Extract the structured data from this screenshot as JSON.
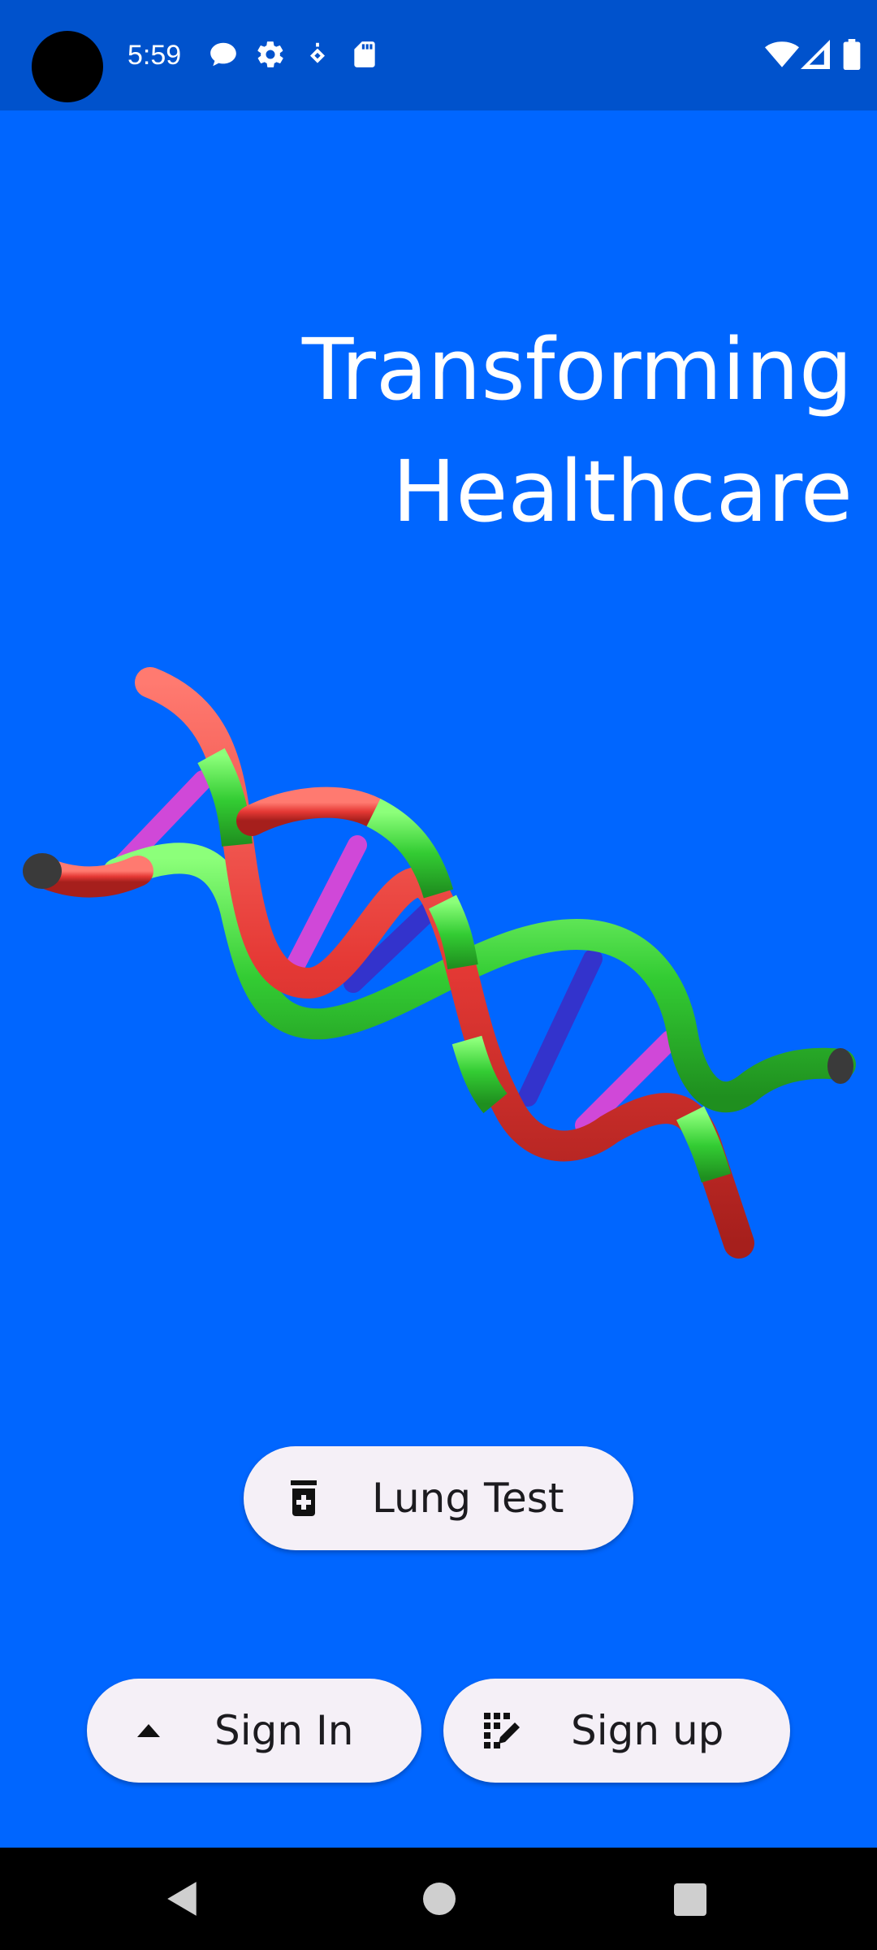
{
  "status_bar": {
    "time": "5:59",
    "left_icons": [
      "chat-bubble-icon",
      "settings-gear-icon",
      "location-pin-icon",
      "sd-card-icon"
    ],
    "right_icons": [
      "wifi-icon",
      "cell-signal-icon",
      "battery-icon"
    ]
  },
  "hero": {
    "title_line1": "Transforming",
    "title_line2": "Healthcare",
    "illustration": "dna-double-helix"
  },
  "actions": {
    "lung_test_label": "Lung Test",
    "lung_test_icon": "medicine-bottle-icon",
    "sign_in_label": "Sign In",
    "sign_in_icon": "arrow-up-icon",
    "sign_up_label": "Sign up",
    "sign_up_icon": "edit-grid-icon"
  },
  "nav": {
    "buttons": [
      "back-icon",
      "home-icon",
      "recents-icon"
    ]
  },
  "colors": {
    "background": "#0066FF",
    "status_bar": "#0052CC",
    "button_bg": "#F5F0F7",
    "helix_red": "#E53935",
    "helix_green": "#33CC33",
    "rung_magenta": "#D048D8",
    "rung_blue": "#3333CC"
  }
}
